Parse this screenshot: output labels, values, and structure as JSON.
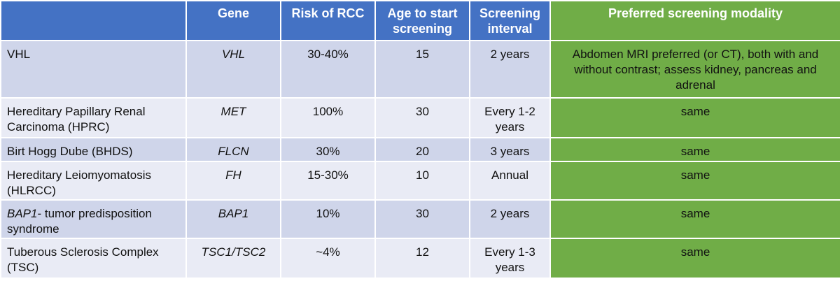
{
  "table": {
    "headers": [
      "",
      "Gene",
      "Risk of RCC",
      "Age to start screening",
      "Screening interval",
      "Preferred screening modality"
    ],
    "rows": [
      {
        "syndrome": "VHL",
        "gene": "VHL",
        "risk": "30-40%",
        "age": "15",
        "interval": "2 years",
        "modality": "Abdomen MRI preferred (or CT), both with and without contrast; assess kidney, pancreas and adrenal"
      },
      {
        "syndrome": "Hereditary Papillary Renal Carcinoma (HPRC)",
        "gene": "MET",
        "risk": "100%",
        "age": "30",
        "interval": "Every 1-2 years",
        "modality": "same"
      },
      {
        "syndrome": "Birt Hogg Dube (BHDS)",
        "gene": "FLCN",
        "risk": "30%",
        "age": "20",
        "interval": "3 years",
        "modality": "same"
      },
      {
        "syndrome": "Hereditary Leiomyomatosis (HLRCC)",
        "gene": "FH",
        "risk": "15-30%",
        "age": "10",
        "interval": "Annual",
        "modality": "same"
      },
      {
        "syndrome_italic": "BAP1",
        "syndrome_rest": "- tumor predisposition syndrome",
        "gene": "BAP1",
        "risk": "10%",
        "age": "30",
        "interval": "2 years",
        "modality": "same"
      },
      {
        "syndrome": "Tuberous Sclerosis Complex (TSC)",
        "gene": "TSC1/TSC2",
        "risk": "~4%",
        "age": "12",
        "interval": "Every 1-3 years",
        "modality": "same"
      }
    ]
  },
  "colors": {
    "header_blue": "#4472c4",
    "header_green": "#70ad47",
    "row_dark": "#cfd5ea",
    "row_light": "#e9ebf5"
  }
}
